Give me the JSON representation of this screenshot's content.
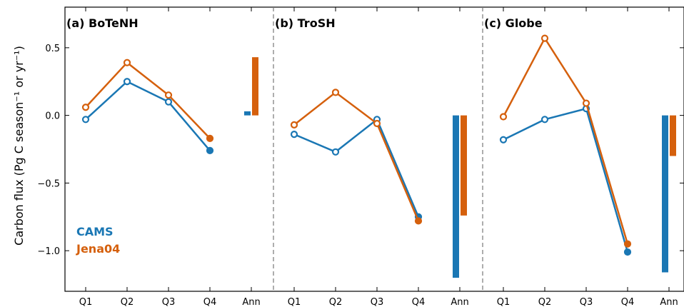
{
  "chart_data": {
    "type": "line",
    "ylabel": "Carbon flux (Pg C season⁻¹ or yr⁻¹)",
    "ylim": [
      -1.3,
      0.8
    ],
    "yticks": [
      0.5,
      0.0,
      -0.5,
      -1.0
    ],
    "ytick_labels": [
      "0.5",
      "0.0",
      "−0.5",
      "−1.0"
    ],
    "categories": [
      "Q1",
      "Q2",
      "Q3",
      "Q4",
      "Ann"
    ],
    "series_styles": [
      {
        "name": "CAMS",
        "color": "#1a77b4"
      },
      {
        "name": "Jena04",
        "color": "#d5600d"
      }
    ],
    "legend": {
      "position": "bottom-left",
      "entries": [
        "CAMS",
        "Jena04"
      ]
    },
    "grid": false,
    "panels": [
      {
        "title": "(a) BoTeNH",
        "series": [
          {
            "name": "CAMS",
            "values": [
              -0.03,
              0.25,
              0.1,
              -0.26
            ],
            "annual": 0.03
          },
          {
            "name": "Jena04",
            "values": [
              0.06,
              0.39,
              0.15,
              -0.17
            ],
            "annual": 0.43
          }
        ]
      },
      {
        "title": "(b) TroSH",
        "series": [
          {
            "name": "CAMS",
            "values": [
              -0.14,
              -0.27,
              -0.03,
              -0.75
            ],
            "annual": -1.2
          },
          {
            "name": "Jena04",
            "values": [
              -0.07,
              0.17,
              -0.06,
              -0.78
            ],
            "annual": -0.74
          }
        ]
      },
      {
        "title": "(c) Globe",
        "series": [
          {
            "name": "CAMS",
            "values": [
              -0.18,
              -0.03,
              0.05,
              -1.01
            ],
            "annual": -1.16
          },
          {
            "name": "Jena04",
            "values": [
              -0.01,
              0.57,
              0.09,
              -0.95
            ],
            "annual": -0.3
          }
        ]
      }
    ]
  }
}
